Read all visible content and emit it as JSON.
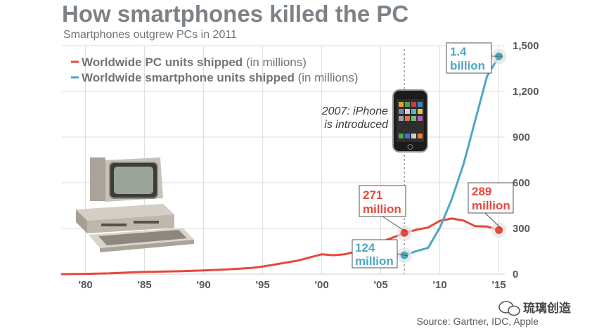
{
  "chart_data": {
    "type": "line",
    "title": "How smartphones killed the PC",
    "subtitle": "Smartphones outgrew PCs in 2011",
    "x_tick_labels": [
      "'80",
      "'85",
      "'90",
      "'95",
      "'00",
      "'05",
      "'10",
      "'15"
    ],
    "x_tick_values": [
      1980,
      1985,
      1990,
      1995,
      2000,
      2005,
      2010,
      2015
    ],
    "xlim": [
      1978,
      2015.5
    ],
    "y_tick_labels": [
      "0",
      "300",
      "600",
      "900",
      "1,200",
      "1,500"
    ],
    "y_tick_values": [
      0,
      300,
      600,
      900,
      1200,
      1500
    ],
    "ylim": [
      0,
      1500
    ],
    "grid": true,
    "legend_position": "top-left",
    "series": [
      {
        "name": "Worldwide PC units shipped",
        "name_suffix": "(in millions)",
        "color": "#e8473a",
        "x": [
          1978,
          1980,
          1982,
          1984,
          1985,
          1986,
          1988,
          1990,
          1992,
          1994,
          1995,
          1996,
          1997,
          1998,
          1999,
          2000,
          2001,
          2002,
          2003,
          2004,
          2005,
          2006,
          2007,
          2008,
          2009,
          2010,
          2011,
          2012,
          2013,
          2014,
          2015
        ],
        "values": [
          0,
          2,
          5,
          12,
          15,
          16,
          19,
          24,
          31,
          40,
          50,
          63,
          76,
          89,
          110,
          130,
          124,
          131,
          150,
          178,
          211,
          239,
          271,
          291,
          306,
          350,
          365,
          352,
          315,
          313,
          289
        ]
      },
      {
        "name": "Worldwide smartphone units shipped",
        "name_suffix": "(in millions)",
        "color": "#4ea6c4",
        "x": [
          2007,
          2008,
          2009,
          2010,
          2011,
          2012,
          2013,
          2014,
          2015
        ],
        "values": [
          124,
          151,
          172,
          305,
          490,
          720,
          1010,
          1300,
          1430
        ]
      }
    ],
    "annotations": [
      {
        "id": "pc2007",
        "line1": "271",
        "line2": "million",
        "x": 2007,
        "y": 271,
        "color": "#e8473a"
      },
      {
        "id": "pc2015",
        "line1": "289",
        "line2": "million",
        "x": 2015,
        "y": 289,
        "color": "#e8473a"
      },
      {
        "id": "sp2007",
        "line1": "124",
        "line2": "million",
        "x": 2007,
        "y": 124,
        "color": "#4ea6c4"
      },
      {
        "id": "sp2015",
        "line1": "1.4",
        "line2": "billion",
        "x": 2015,
        "y": 1430,
        "color": "#4ea6c4"
      }
    ],
    "event": {
      "x": 2007,
      "line1": "2007: iPhone",
      "line2": "is introduced"
    },
    "source": "Source: Gartner, IDC, Apple"
  },
  "watermark": "琉璃创造"
}
